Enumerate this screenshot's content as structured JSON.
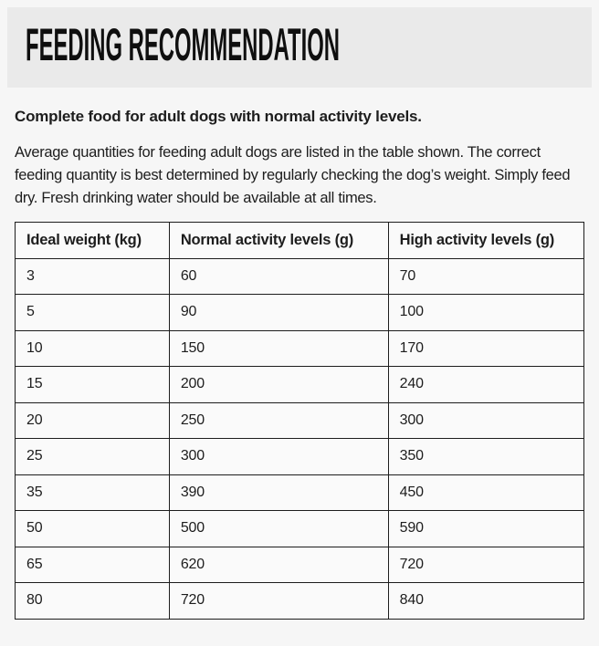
{
  "header": {
    "title": "FEEDING RECOMMENDATION"
  },
  "intro": {
    "bold_line": "Complete food for adult dogs with normal activity levels."
  },
  "description": "Average quantities for feeding adult dogs are listed in the table shown. The correct feeding quantity is best determined by regularly checking the dog’s weight. Simply feed dry. Fresh drinking water should be available at all times.",
  "feeding_table": {
    "columns": [
      "Ideal weight (kg)",
      "Normal activity levels (g)",
      "High activity levels (g)"
    ],
    "rows": [
      [
        "3",
        "60",
        "70"
      ],
      [
        "5",
        "90",
        "100"
      ],
      [
        "10",
        "150",
        "170"
      ],
      [
        "15",
        "200",
        "240"
      ],
      [
        "20",
        "250",
        "300"
      ],
      [
        "25",
        "300",
        "350"
      ],
      [
        "35",
        "390",
        "450"
      ],
      [
        "50",
        "500",
        "590"
      ],
      [
        "65",
        "620",
        "720"
      ],
      [
        "80",
        "720",
        "840"
      ]
    ]
  },
  "colors": {
    "page_background": "#f6f6f6",
    "header_background": "#eaeaea",
    "cell_background": "#fafafa",
    "border": "#1d1d1d",
    "text": "#1d1d1d"
  }
}
